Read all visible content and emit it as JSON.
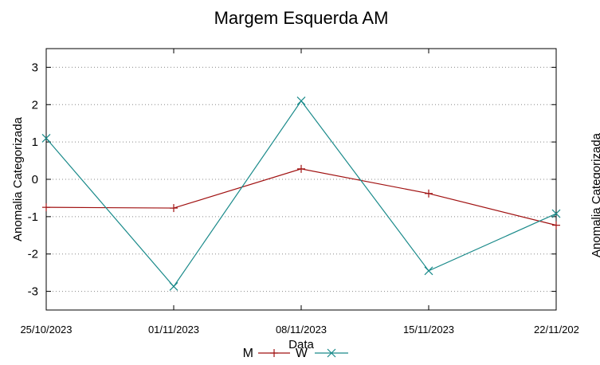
{
  "chart_data": {
    "type": "line",
    "title": "Margem Esquerda AM",
    "xlabel": "Data",
    "ylabel": "Anomalia Categorizada",
    "right_ylabel_partial": "Anomalia Categorizada",
    "x_ticks": [
      "25/10/2023",
      "01/11/2023",
      "08/11/2023",
      "15/11/2023",
      "22/11/202"
    ],
    "x": [
      "2023-10-25",
      "2023-11-01",
      "2023-11-08",
      "2023-11-15",
      "2023-11-22"
    ],
    "ylim": [
      -3.5,
      3.5
    ],
    "yticks": [
      -3,
      -2,
      -1,
      0,
      1,
      2,
      3
    ],
    "grid": "horizontal dotted",
    "legend_position": "bottom-center",
    "series": [
      {
        "name": "M",
        "color": "#a01010",
        "marker": "plus",
        "values": [
          -0.75,
          -0.77,
          0.28,
          -0.38,
          -1.23
        ]
      },
      {
        "name": "W",
        "color": "#1a8a8a",
        "marker": "x",
        "values": [
          1.1,
          -2.87,
          2.1,
          -2.45,
          -0.92
        ]
      }
    ]
  }
}
